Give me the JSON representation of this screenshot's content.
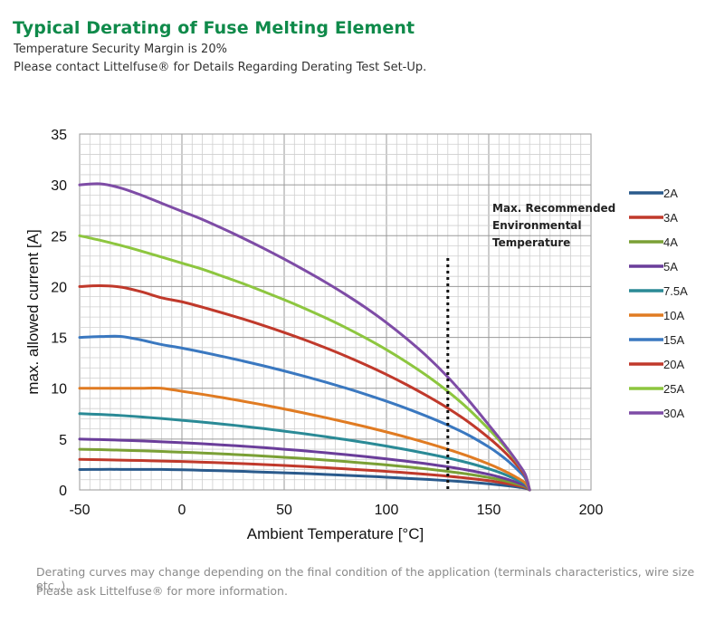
{
  "header": {
    "title": "Typical Derating of Fuse Melting Element",
    "subtitle1": "Temperature Security Margin is 20%",
    "subtitle2": "Please contact Littelfuse® for Details Regarding Derating Test Set-Up."
  },
  "footer": {
    "note1": "Derating curves may change depending on the final condition of the application (terminals characteristics, wire size etc..).",
    "note2": "Please ask Littelfuse® for more information."
  },
  "chart_data": {
    "type": "line",
    "xlabel": "Ambient Temperature [°C]",
    "ylabel": "max. allowed current [A]",
    "xlim": [
      -50,
      200
    ],
    "ylim": [
      0,
      35
    ],
    "xticks": [
      -50,
      0,
      50,
      100,
      150,
      200
    ],
    "yticks": [
      0,
      5,
      10,
      15,
      20,
      25,
      30,
      35
    ],
    "grid": true,
    "legend_position": "right",
    "annotation": {
      "lines": [
        "Max. Recommended",
        "Environmental",
        "Temperature"
      ],
      "x": 130
    },
    "x": [
      -50,
      -40,
      -30,
      -20,
      -10,
      0,
      10,
      20,
      30,
      40,
      50,
      60,
      70,
      80,
      90,
      100,
      110,
      120,
      130,
      140,
      150,
      155,
      160,
      165,
      168,
      170
    ],
    "series": [
      {
        "name": "2A",
        "color": "#2a5a8c",
        "values": [
          2.0,
          2.02,
          2.02,
          2.02,
          2.01,
          1.98,
          1.93,
          1.88,
          1.82,
          1.75,
          1.68,
          1.61,
          1.53,
          1.44,
          1.35,
          1.25,
          1.14,
          1.03,
          0.91,
          0.77,
          0.6,
          0.5,
          0.39,
          0.26,
          0.16,
          0.0
        ]
      },
      {
        "name": "3A",
        "color": "#c0392b",
        "values": [
          3.0,
          2.97,
          2.93,
          2.89,
          2.84,
          2.79,
          2.73,
          2.66,
          2.58,
          2.49,
          2.4,
          2.3,
          2.19,
          2.07,
          1.95,
          1.82,
          1.68,
          1.52,
          1.35,
          1.15,
          0.91,
          0.76,
          0.59,
          0.39,
          0.24,
          0.0
        ]
      },
      {
        "name": "4A",
        "color": "#7aa035",
        "values": [
          4.0,
          3.96,
          3.91,
          3.85,
          3.78,
          3.71,
          3.63,
          3.54,
          3.44,
          3.33,
          3.21,
          3.08,
          2.94,
          2.79,
          2.63,
          2.46,
          2.27,
          2.06,
          1.82,
          1.55,
          1.22,
          1.02,
          0.79,
          0.52,
          0.32,
          0.0
        ]
      },
      {
        "name": "5A",
        "color": "#6a3d9a",
        "values": [
          5.0,
          4.95,
          4.89,
          4.82,
          4.73,
          4.64,
          4.54,
          4.42,
          4.3,
          4.16,
          4.0,
          3.84,
          3.66,
          3.47,
          3.27,
          3.05,
          2.82,
          2.56,
          2.27,
          1.94,
          1.53,
          1.28,
          0.99,
          0.65,
          0.4,
          0.0
        ]
      },
      {
        "name": "7.5A",
        "color": "#2a8a96",
        "values": [
          7.5,
          7.42,
          7.32,
          7.18,
          7.02,
          6.85,
          6.67,
          6.47,
          6.26,
          6.03,
          5.78,
          5.52,
          5.24,
          4.95,
          4.64,
          4.31,
          3.95,
          3.56,
          3.14,
          2.66,
          2.08,
          1.74,
          1.34,
          0.88,
          0.54,
          0.0
        ]
      },
      {
        "name": "10A",
        "color": "#e07b22",
        "values": [
          10.0,
          10.0,
          10.0,
          10.0,
          10.0,
          9.7,
          9.4,
          9.07,
          8.72,
          8.35,
          7.96,
          7.55,
          7.12,
          6.67,
          6.2,
          5.7,
          5.17,
          4.6,
          3.99,
          3.32,
          2.55,
          2.12,
          1.63,
          1.07,
          0.66,
          0.0
        ]
      },
      {
        "name": "15A",
        "color": "#3a78c0",
        "values": [
          15.0,
          15.08,
          15.1,
          14.75,
          14.3,
          13.95,
          13.55,
          13.12,
          12.67,
          12.2,
          11.7,
          11.17,
          10.61,
          10.02,
          9.39,
          8.72,
          8.0,
          7.22,
          6.37,
          5.4,
          4.23,
          3.54,
          2.74,
          1.8,
          1.1,
          0.0
        ]
      },
      {
        "name": "20A",
        "color": "#c0392b",
        "values": [
          20.0,
          20.08,
          19.95,
          19.5,
          18.9,
          18.5,
          17.97,
          17.4,
          16.8,
          16.16,
          15.48,
          14.76,
          13.99,
          13.17,
          12.29,
          11.35,
          10.33,
          9.23,
          8.04,
          6.69,
          5.13,
          4.25,
          3.27,
          2.14,
          1.3,
          0.0
        ]
      },
      {
        "name": "25A",
        "color": "#8dc63f",
        "values": [
          25.0,
          24.55,
          24.05,
          23.5,
          22.9,
          22.3,
          21.7,
          21.0,
          20.28,
          19.5,
          18.7,
          17.85,
          16.94,
          15.97,
          14.92,
          13.79,
          12.55,
          11.2,
          9.69,
          7.97,
          5.98,
          4.9,
          3.72,
          2.39,
          1.45,
          0.0
        ]
      },
      {
        "name": "30A",
        "color": "#7e4ca6",
        "values": [
          30.0,
          30.1,
          29.7,
          29.0,
          28.2,
          27.4,
          26.6,
          25.7,
          24.75,
          23.75,
          22.7,
          21.6,
          20.45,
          19.22,
          17.9,
          16.45,
          14.85,
          13.1,
          11.1,
          8.85,
          6.4,
          5.15,
          3.85,
          2.45,
          1.45,
          0.0
        ]
      }
    ]
  }
}
